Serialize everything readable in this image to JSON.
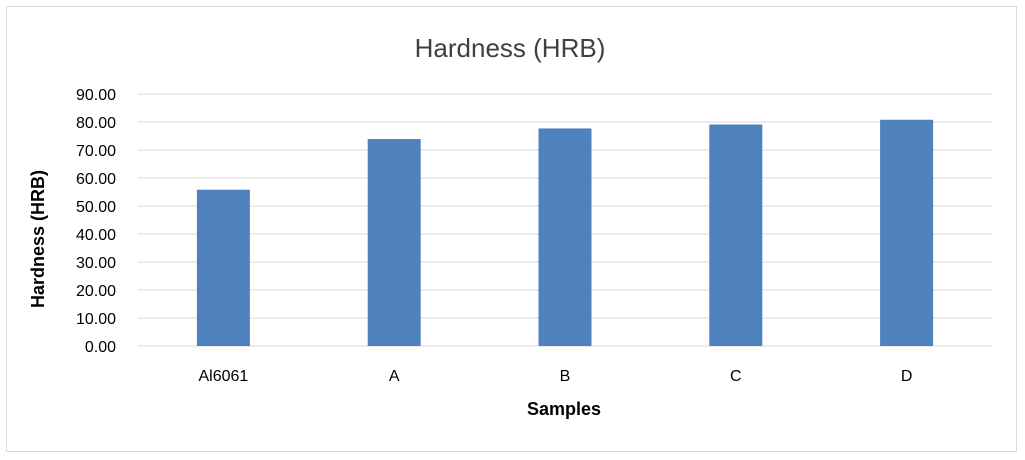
{
  "chart_data": {
    "type": "bar",
    "title": "Hardness (HRB)",
    "xlabel": "Samples",
    "ylabel": "Hardness (HRB)",
    "categories": [
      "Al6061",
      "A",
      "B",
      "C",
      "D"
    ],
    "series": [
      {
        "values": [
          55.8,
          73.9,
          77.7,
          79.1,
          80.8
        ],
        "color": "#4f81bd"
      }
    ],
    "ylim": [
      0,
      90
    ],
    "ytick_step": 10,
    "ytick_labels": [
      "0.00",
      "10.00",
      "20.00",
      "30.00",
      "40.00",
      "50.00",
      "60.00",
      "70.00",
      "80.00",
      "90.00"
    ],
    "grid": true,
    "legend": "none"
  }
}
